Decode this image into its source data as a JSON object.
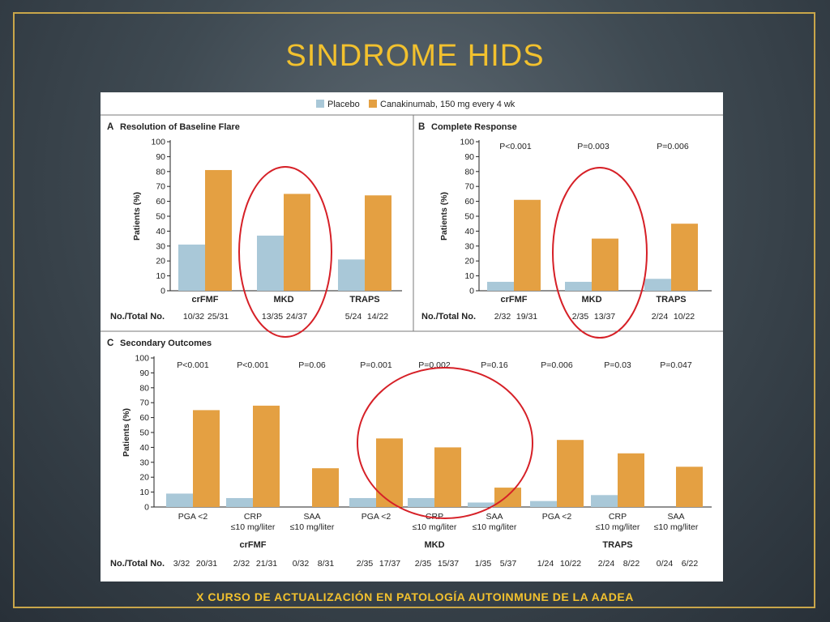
{
  "slide": {
    "title": "SINDROME HIDS",
    "footer": "X CURSO DE ACTUALIZACIÓN EN PATOLOGÍA AUTOINMUNE DE LA AADEA"
  },
  "colors": {
    "placebo": "#a9c8d8",
    "canakinumab": "#e4a042",
    "highlight": "#d62027"
  },
  "chart_data": [
    {
      "type": "bar",
      "panel": "A",
      "title": "Resolution of Baseline Flare",
      "ylabel": "Patients (%)",
      "ylim": [
        0,
        100
      ],
      "yticks": [
        0,
        10,
        20,
        30,
        40,
        50,
        60,
        70,
        80,
        90,
        100
      ],
      "categories": [
        "crFMF",
        "MKD",
        "TRAPS"
      ],
      "legend": [
        "Placebo",
        "Canakinumab, 150 mg every 4 wk"
      ],
      "series": [
        {
          "name": "Placebo",
          "values": [
            31,
            37,
            21
          ]
        },
        {
          "name": "Canakinumab, 150 mg every 4 wk",
          "values": [
            81,
            65,
            64
          ]
        }
      ],
      "counts_label": "No./Total No.",
      "counts": [
        [
          "10/32",
          "25/31"
        ],
        [
          "13/35",
          "24/37"
        ],
        [
          "5/24",
          "14/22"
        ]
      ],
      "highlighted": "MKD"
    },
    {
      "type": "bar",
      "panel": "B",
      "title": "Complete Response",
      "ylabel": "Patients (%)",
      "ylim": [
        0,
        100
      ],
      "yticks": [
        0,
        10,
        20,
        30,
        40,
        50,
        60,
        70,
        80,
        90,
        100
      ],
      "categories": [
        "crFMF",
        "MKD",
        "TRAPS"
      ],
      "pvalues": [
        "P<0.001",
        "P=0.003",
        "P=0.006"
      ],
      "series": [
        {
          "name": "Placebo",
          "values": [
            6,
            6,
            8
          ]
        },
        {
          "name": "Canakinumab, 150 mg every 4 wk",
          "values": [
            61,
            35,
            45
          ]
        }
      ],
      "counts_label": "No./Total No.",
      "counts": [
        [
          "2/32",
          "19/31"
        ],
        [
          "2/35",
          "13/37"
        ],
        [
          "2/24",
          "10/22"
        ]
      ],
      "highlighted": "MKD"
    },
    {
      "type": "bar",
      "panel": "C",
      "title": "Secondary Outcomes",
      "ylabel": "Patients (%)",
      "ylim": [
        0,
        100
      ],
      "yticks": [
        0,
        10,
        20,
        30,
        40,
        50,
        60,
        70,
        80,
        90,
        100
      ],
      "groups": [
        "crFMF",
        "MKD",
        "TRAPS"
      ],
      "categories": [
        {
          "line1": "PGA <2",
          "line2": ""
        },
        {
          "line1": "CRP",
          "line2": "≤10 mg/liter"
        },
        {
          "line1": "SAA",
          "line2": "≤10 mg/liter"
        },
        {
          "line1": "PGA <2",
          "line2": ""
        },
        {
          "line1": "CRP",
          "line2": "≤10 mg/liter"
        },
        {
          "line1": "SAA",
          "line2": "≤10 mg/liter"
        },
        {
          "line1": "PGA <2",
          "line2": ""
        },
        {
          "line1": "CRP",
          "line2": "≤10 mg/liter"
        },
        {
          "line1": "SAA",
          "line2": "≤10 mg/liter"
        }
      ],
      "pvalues": [
        "P<0.001",
        "P<0.001",
        "P=0.06",
        "P=0.001",
        "P=0.002",
        "P=0.16",
        "P=0.006",
        "P=0.03",
        "P=0.047"
      ],
      "series": [
        {
          "name": "Placebo",
          "values": [
            9,
            6,
            0,
            6,
            6,
            3,
            4,
            8,
            0
          ]
        },
        {
          "name": "Canakinumab, 150 mg every 4 wk",
          "values": [
            65,
            68,
            26,
            46,
            40,
            13,
            45,
            36,
            27
          ]
        }
      ],
      "counts_label": "No./Total No.",
      "counts": [
        [
          "3/32",
          "20/31"
        ],
        [
          "2/32",
          "21/31"
        ],
        [
          "0/32",
          "8/31"
        ],
        [
          "2/35",
          "17/37"
        ],
        [
          "2/35",
          "15/37"
        ],
        [
          "1/35",
          "5/37"
        ],
        [
          "1/24",
          "10/22"
        ],
        [
          "2/24",
          "8/22"
        ],
        [
          "0/24",
          "6/22"
        ]
      ],
      "highlighted": "MKD"
    }
  ]
}
